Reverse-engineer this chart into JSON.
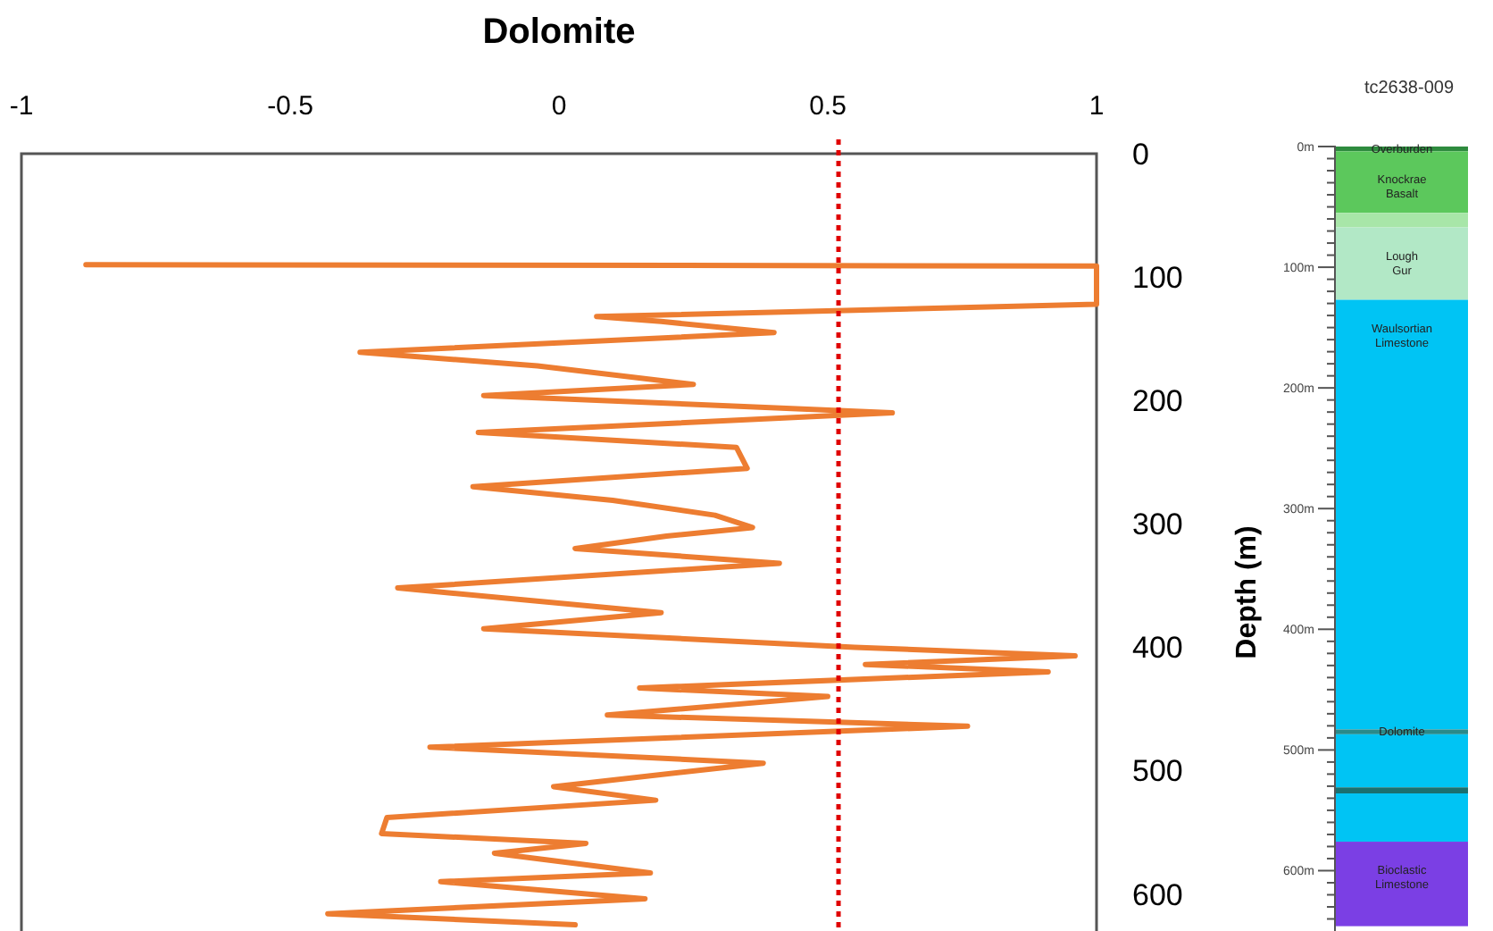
{
  "chart_data": [
    {
      "type": "line",
      "title": "Dolomite",
      "xlim": [
        -1,
        1
      ],
      "xticks": [
        -1,
        -0.5,
        0,
        0.5,
        1
      ],
      "ylim": [
        630,
        0
      ],
      "yticks": [
        0,
        100,
        200,
        300,
        400,
        500,
        600
      ],
      "grid": false,
      "marker": "none",
      "line_style": "solid",
      "ref_lines": [
        {
          "axis": "x",
          "value": 0.52,
          "color": "#e00000",
          "line_style": "dotted"
        }
      ],
      "series": [
        {
          "color": "#ed7d31",
          "x": [
            -0.88,
            1,
            1,
            0.07,
            0.19,
            0.4,
            -0.37,
            -0.04,
            0.25,
            -0.14,
            0.62,
            -0.15,
            0.33,
            0.35,
            -0.16,
            0.1,
            0.29,
            0.36,
            0.2,
            0.03,
            0.41,
            -0.3,
            0.19,
            -0.14,
            0.55,
            0.96,
            0.57,
            0.91,
            0.15,
            0.5,
            0.09,
            0.76,
            -0.24,
            0.38,
            -0.01,
            0.18,
            -0.32,
            -0.33,
            0.05,
            -0.12,
            0.17,
            -0.22,
            0.16,
            -0.43,
            0.03
          ],
          "values": [
            90,
            91,
            122,
            132,
            136,
            145,
            161,
            172,
            187,
            196,
            210,
            226,
            238,
            255,
            270,
            281,
            293,
            303,
            310,
            320,
            332,
            352,
            372,
            385,
            400,
            407,
            414,
            420,
            433,
            440,
            455,
            464,
            481,
            494,
            513,
            524,
            538,
            551,
            559,
            567,
            583,
            590,
            604,
            616,
            625
          ]
        }
      ]
    },
    {
      "type": "bar",
      "stacked": true,
      "title": "tc2638-009",
      "ylabel": "Depth (m)",
      "categories": [
        null
      ],
      "ylim": [
        650,
        0
      ],
      "grid": false,
      "yticks": [
        {
          "value": 0,
          "label": "0m"
        },
        {
          "value": 10,
          "label": null
        },
        {
          "value": 20,
          "label": null
        },
        {
          "value": 30,
          "label": null
        },
        {
          "value": 40,
          "label": null
        },
        {
          "value": 50,
          "label": null
        },
        {
          "value": 60,
          "label": null
        },
        {
          "value": 70,
          "label": null
        },
        {
          "value": 80,
          "label": null
        },
        {
          "value": 90,
          "label": null
        },
        {
          "value": 100,
          "label": "100m"
        },
        {
          "value": 110,
          "label": null
        },
        {
          "value": 120,
          "label": null
        },
        {
          "value": 130,
          "label": null
        },
        {
          "value": 140,
          "label": null
        },
        {
          "value": 150,
          "label": null
        },
        {
          "value": 160,
          "label": null
        },
        {
          "value": 170,
          "label": null
        },
        {
          "value": 180,
          "label": null
        },
        {
          "value": 190,
          "label": null
        },
        {
          "value": 200,
          "label": "200m"
        },
        {
          "value": 210,
          "label": null
        },
        {
          "value": 220,
          "label": null
        },
        {
          "value": 230,
          "label": null
        },
        {
          "value": 240,
          "label": null
        },
        {
          "value": 250,
          "label": null
        },
        {
          "value": 260,
          "label": null
        },
        {
          "value": 270,
          "label": null
        },
        {
          "value": 280,
          "label": null
        },
        {
          "value": 290,
          "label": null
        },
        {
          "value": 300,
          "label": "300m"
        },
        {
          "value": 310,
          "label": null
        },
        {
          "value": 320,
          "label": null
        },
        {
          "value": 330,
          "label": null
        },
        {
          "value": 340,
          "label": null
        },
        {
          "value": 350,
          "label": null
        },
        {
          "value": 360,
          "label": null
        },
        {
          "value": 370,
          "label": null
        },
        {
          "value": 380,
          "label": null
        },
        {
          "value": 390,
          "label": null
        },
        {
          "value": 400,
          "label": "400m"
        },
        {
          "value": 410,
          "label": null
        },
        {
          "value": 420,
          "label": null
        },
        {
          "value": 430,
          "label": null
        },
        {
          "value": 440,
          "label": null
        },
        {
          "value": 450,
          "label": null
        },
        {
          "value": 460,
          "label": null
        },
        {
          "value": 470,
          "label": null
        },
        {
          "value": 480,
          "label": null
        },
        {
          "value": 490,
          "label": null
        },
        {
          "value": 500,
          "label": "500m"
        },
        {
          "value": 510,
          "label": null
        },
        {
          "value": 520,
          "label": null
        },
        {
          "value": 530,
          "label": null
        },
        {
          "value": 540,
          "label": null
        },
        {
          "value": 550,
          "label": null
        },
        {
          "value": 560,
          "label": null
        },
        {
          "value": 570,
          "label": null
        },
        {
          "value": 580,
          "label": null
        },
        {
          "value": 590,
          "label": null
        },
        {
          "value": 600,
          "label": "600m"
        },
        {
          "value": 610,
          "label": null
        },
        {
          "value": 620,
          "label": null
        },
        {
          "value": 630,
          "label": null
        },
        {
          "value": 640,
          "label": null
        }
      ],
      "series": [
        {
          "name": "Overburden",
          "color": "#2e8b3e",
          "values": [
            4
          ]
        },
        {
          "name": "Knockrae Basalt",
          "color": "#5cc85c",
          "values": [
            51
          ]
        },
        {
          "color": "#a8e6a8",
          "values": [
            12
          ]
        },
        {
          "name": "Lough Gur",
          "color": "#b2e8c6",
          "values": [
            60
          ]
        },
        {
          "name": "Waulsortian Limestone",
          "color": "#00c4f4",
          "values": [
            356
          ]
        },
        {
          "name": "Dolomite",
          "color": "#2a8a8a",
          "values": [
            4
          ]
        },
        {
          "color": "#00c4f4",
          "values": [
            44
          ]
        },
        {
          "color": "#1a7070",
          "values": [
            5
          ]
        },
        {
          "color": "#00c4f4",
          "values": [
            40
          ]
        },
        {
          "name": "Bioclastic Limestone",
          "color": "#7b3fe4",
          "values": [
            70
          ]
        }
      ]
    }
  ]
}
